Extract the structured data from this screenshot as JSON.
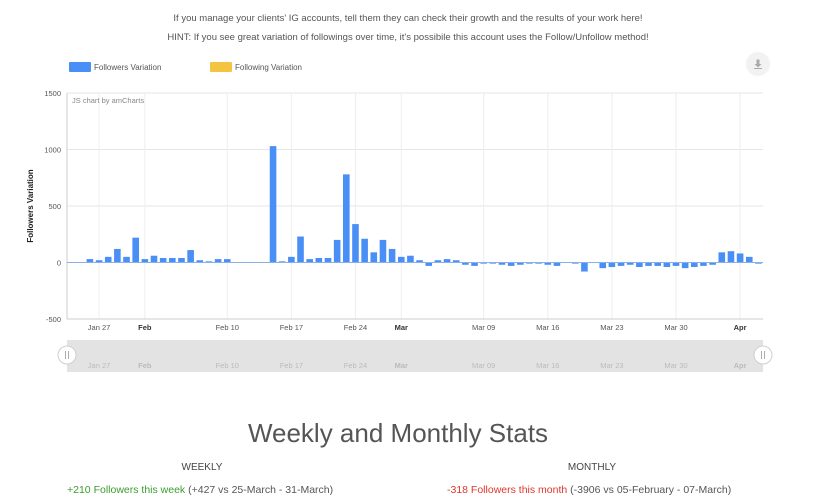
{
  "hint": {
    "line1": "If you manage your clients' IG accounts, tell them they can check their growth and the results of your work here!",
    "line2": "HINT: If you see great variation of followings over time, it's possibile this account uses the Follow/Unfollow method!"
  },
  "legend": {
    "followers_label": "Followers Variation",
    "following_label": "Following Variation",
    "followers_color": "#4a8ff5",
    "following_color": "#f5c342"
  },
  "download_icon": "download-icon",
  "chart_data": {
    "type": "bar",
    "credit": "JS chart by amCharts",
    "ylabel": "Followers Variation",
    "ylim": [
      -500,
      1500
    ],
    "yticks": [
      -500,
      0,
      500,
      1000,
      1500
    ],
    "grid": true,
    "legend_position": "top-left",
    "xticks": [
      {
        "label": "Jan 27",
        "index": 3,
        "bold": false
      },
      {
        "label": "Feb",
        "index": 8,
        "bold": true
      },
      {
        "label": "Feb 10",
        "index": 17,
        "bold": false
      },
      {
        "label": "Feb 17",
        "index": 24,
        "bold": false
      },
      {
        "label": "Feb 24",
        "index": 31,
        "bold": false
      },
      {
        "label": "Mar",
        "index": 36,
        "bold": true
      },
      {
        "label": "Mar 09",
        "index": 45,
        "bold": false
      },
      {
        "label": "Mar 16",
        "index": 52,
        "bold": false
      },
      {
        "label": "Mar 23",
        "index": 59,
        "bold": false
      },
      {
        "label": "Mar 30",
        "index": 66,
        "bold": false
      },
      {
        "label": "Apr",
        "index": 73,
        "bold": true
      }
    ],
    "series": [
      {
        "name": "Followers Variation",
        "values": [
          0,
          0,
          30,
          20,
          50,
          120,
          50,
          220,
          30,
          60,
          40,
          40,
          40,
          110,
          20,
          10,
          30,
          30,
          0,
          0,
          0,
          0,
          1030,
          10,
          50,
          230,
          30,
          40,
          40,
          200,
          780,
          340,
          210,
          90,
          200,
          120,
          50,
          60,
          20,
          -30,
          20,
          30,
          20,
          -20,
          -30,
          -10,
          -10,
          -20,
          -30,
          -20,
          -10,
          -10,
          -20,
          -30,
          0,
          -10,
          -80,
          0,
          -50,
          -40,
          -30,
          -20,
          -40,
          -30,
          -30,
          -40,
          -30,
          -50,
          -40,
          -30,
          -20,
          90,
          100,
          80,
          50,
          -10
        ]
      },
      {
        "name": "Following Variation",
        "values": []
      }
    ]
  },
  "stats": {
    "title": "Weekly and Monthly Stats",
    "weekly": {
      "header": "WEEKLY",
      "highlight": "+210 Followers this week",
      "rest": " (+427 vs 25-March - 31-March)"
    },
    "monthly": {
      "header": "MONTHLY",
      "highlight": "-318 Followers this month",
      "rest": " (-3906 vs 05-February - 07-March)"
    }
  }
}
